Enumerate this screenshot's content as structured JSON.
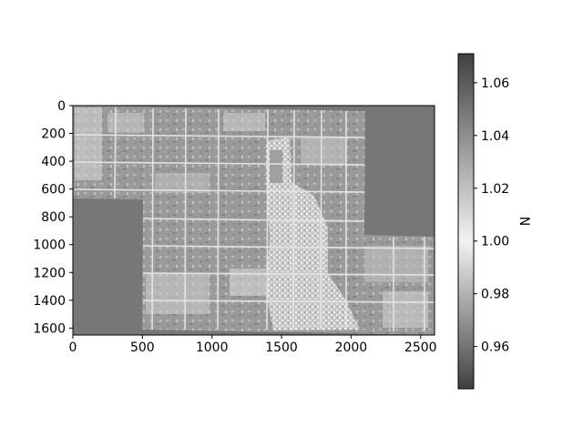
{
  "chart_data": [
    {
      "type": "heatmap",
      "description": "grayscale raster image of a field mosaic",
      "x_ticks": [
        "0",
        "500",
        "1000",
        "1500",
        "2000",
        "2500"
      ],
      "x_tick_values": [
        0,
        500,
        1000,
        1500,
        2000,
        2500
      ],
      "y_ticks": [
        "0",
        "200",
        "400",
        "600",
        "800",
        "1000",
        "1200",
        "1400",
        "1600"
      ],
      "y_tick_values": [
        0,
        200,
        400,
        600,
        800,
        1000,
        1200,
        1400,
        1600
      ],
      "xlim": [
        0,
        2600
      ],
      "ylim": [
        1650,
        0
      ],
      "colormap": "gray",
      "no_data_regions": [
        {
          "x": [
            0,
            510
          ],
          "y": [
            675,
            1650
          ]
        },
        {
          "x": [
            2100,
            2600
          ],
          "y": [
            0,
            930
          ]
        }
      ]
    },
    {
      "type": "colorbar",
      "label": "N",
      "range": [
        0.944,
        1.071
      ],
      "ticks": [
        "0.96",
        "0.98",
        "1.00",
        "1.02",
        "1.04",
        "1.06"
      ],
      "tick_values": [
        0.96,
        0.98,
        1.0,
        1.02,
        1.04,
        1.06
      ],
      "colormap": [
        "#404040",
        "#f2f2f2",
        "#404040"
      ]
    }
  ]
}
